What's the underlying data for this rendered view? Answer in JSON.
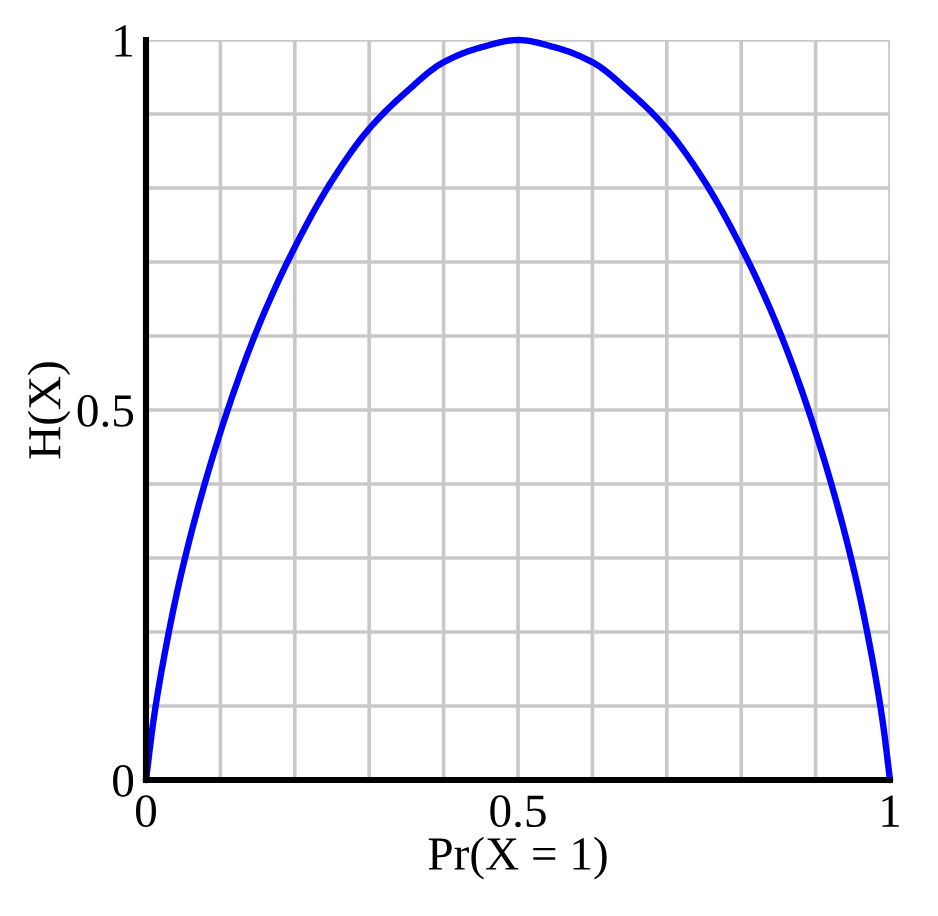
{
  "chart_data": {
    "type": "line",
    "xlabel": "Pr(X = 1)",
    "ylabel": "H(X)",
    "color": "#0000ff",
    "line_style": "solid",
    "grid": true,
    "x": [
      0,
      0.01,
      0.025,
      0.05,
      0.1,
      0.15,
      0.2,
      0.25,
      0.3,
      0.35,
      0.4,
      0.45,
      0.5,
      0.55,
      0.6,
      0.65,
      0.7,
      0.75,
      0.8,
      0.85,
      0.9,
      0.95,
      0.975,
      0.99,
      1
    ],
    "values": [
      0,
      0.08,
      0.17,
      0.29,
      0.47,
      0.61,
      0.72,
      0.81,
      0.88,
      0.93,
      0.97,
      0.99,
      1,
      0.99,
      0.97,
      0.93,
      0.88,
      0.81,
      0.72,
      0.61,
      0.47,
      0.29,
      0.17,
      0.08,
      0
    ],
    "xlim": [
      0,
      1
    ],
    "ylim": [
      0,
      1
    ],
    "xticks": [
      0,
      {
        "value": 0.1,
        "label": null
      },
      {
        "value": 0.2,
        "label": null
      },
      {
        "value": 0.3,
        "label": null
      },
      {
        "value": 0.4,
        "label": null
      },
      0.5,
      {
        "value": 0.6,
        "label": null
      },
      {
        "value": 0.7,
        "label": null
      },
      {
        "value": 0.8,
        "label": null
      },
      {
        "value": 0.9,
        "label": null
      },
      1
    ],
    "yticks": [
      0,
      {
        "value": 0.1,
        "label": null
      },
      {
        "value": 0.2,
        "label": null
      },
      {
        "value": 0.3,
        "label": null
      },
      {
        "value": 0.4,
        "label": null
      },
      0.5,
      {
        "value": 0.6,
        "label": null
      },
      {
        "value": 0.7,
        "label": null
      },
      {
        "value": 0.8,
        "label": null
      },
      {
        "value": 0.9,
        "label": null
      },
      1
    ]
  }
}
